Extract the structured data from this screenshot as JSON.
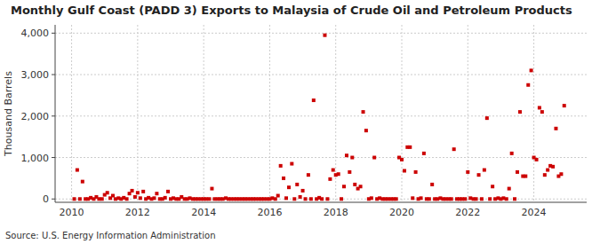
{
  "chart_data": {
    "type": "scatter",
    "title": "Monthly Gulf Coast (PADD 3) Exports to Malaysia of Crude Oil and Petroleum Products",
    "ylabel": "Thousand Barrels",
    "source": "Source: U.S. Energy Information Administration",
    "color": "#cc0000",
    "marker": "square",
    "grid": true,
    "xlim": [
      2009.5,
      2025.6
    ],
    "xticks": [
      2010,
      2012,
      2014,
      2016,
      2018,
      2020,
      2022,
      2024
    ],
    "ylim": [
      -80,
      4200
    ],
    "yticks": [
      0,
      {
        "value": 1000,
        "label": "1,000"
      },
      {
        "value": 2000,
        "label": "2,000"
      },
      {
        "value": 3000,
        "label": "3,000"
      },
      {
        "value": 4000,
        "label": "4,000"
      }
    ],
    "x": [
      2010.08,
      2010.17,
      2010.25,
      2010.33,
      2010.42,
      2010.5,
      2010.58,
      2010.67,
      2010.75,
      2010.83,
      2010.92,
      2011.0,
      2011.08,
      2011.17,
      2011.25,
      2011.33,
      2011.42,
      2011.5,
      2011.58,
      2011.67,
      2011.75,
      2011.83,
      2011.92,
      2012.0,
      2012.08,
      2012.17,
      2012.25,
      2012.33,
      2012.42,
      2012.5,
      2012.58,
      2012.67,
      2012.75,
      2012.83,
      2012.92,
      2013.0,
      2013.08,
      2013.17,
      2013.25,
      2013.33,
      2013.42,
      2013.5,
      2013.58,
      2013.67,
      2013.75,
      2013.83,
      2013.92,
      2014.0,
      2014.08,
      2014.17,
      2014.25,
      2014.33,
      2014.42,
      2014.5,
      2014.58,
      2014.67,
      2014.75,
      2014.83,
      2014.92,
      2015.0,
      2015.08,
      2015.17,
      2015.25,
      2015.33,
      2015.42,
      2015.5,
      2015.58,
      2015.67,
      2015.75,
      2015.83,
      2015.92,
      2016.0,
      2016.08,
      2016.17,
      2016.25,
      2016.33,
      2016.42,
      2016.5,
      2016.58,
      2016.67,
      2016.75,
      2016.83,
      2016.92,
      2017.0,
      2017.08,
      2017.17,
      2017.25,
      2017.33,
      2017.42,
      2017.5,
      2017.58,
      2017.67,
      2017.75,
      2017.83,
      2017.92,
      2018.0,
      2018.08,
      2018.17,
      2018.25,
      2018.33,
      2018.42,
      2018.5,
      2018.58,
      2018.67,
      2018.75,
      2018.83,
      2018.92,
      2019.0,
      2019.08,
      2019.17,
      2019.25,
      2019.33,
      2019.42,
      2019.5,
      2019.58,
      2019.67,
      2019.75,
      2019.83,
      2019.92,
      2020.0,
      2020.08,
      2020.17,
      2020.25,
      2020.33,
      2020.42,
      2020.5,
      2020.58,
      2020.67,
      2020.75,
      2020.83,
      2020.92,
      2021.0,
      2021.08,
      2021.17,
      2021.25,
      2021.33,
      2021.42,
      2021.5,
      2021.58,
      2021.67,
      2021.75,
      2021.83,
      2021.92,
      2022.0,
      2022.08,
      2022.17,
      2022.25,
      2022.33,
      2022.42,
      2022.5,
      2022.58,
      2022.67,
      2022.75,
      2022.83,
      2022.92,
      2023.0,
      2023.08,
      2023.17,
      2023.25,
      2023.33,
      2023.42,
      2023.5,
      2023.58,
      2023.67,
      2023.75,
      2023.83,
      2023.92,
      2024.0,
      2024.08,
      2024.17,
      2024.25,
      2024.33,
      2024.42,
      2024.5,
      2024.58,
      2024.67,
      2024.75,
      2024.83,
      2024.92
    ],
    "values": [
      0,
      700,
      0,
      420,
      0,
      0,
      30,
      0,
      50,
      0,
      0,
      100,
      150,
      20,
      80,
      0,
      20,
      0,
      30,
      0,
      130,
      200,
      50,
      150,
      20,
      180,
      0,
      30,
      0,
      20,
      130,
      0,
      0,
      30,
      180,
      0,
      20,
      0,
      0,
      50,
      0,
      0,
      20,
      0,
      0,
      0,
      0,
      0,
      0,
      0,
      250,
      0,
      0,
      0,
      0,
      20,
      0,
      0,
      0,
      0,
      0,
      0,
      0,
      0,
      0,
      0,
      0,
      0,
      0,
      0,
      0,
      0,
      20,
      0,
      80,
      800,
      500,
      20,
      280,
      850,
      0,
      350,
      50,
      200,
      0,
      580,
      0,
      2380,
      0,
      30,
      0,
      3950,
      0,
      480,
      700,
      580,
      600,
      0,
      300,
      1050,
      650,
      1000,
      350,
      250,
      300,
      2100,
      1650,
      0,
      20,
      1000,
      0,
      20,
      0,
      0,
      0,
      0,
      0,
      0,
      1000,
      950,
      680,
      1250,
      1250,
      20,
      650,
      0,
      20,
      1100,
      0,
      0,
      350,
      0,
      0,
      20,
      0,
      0,
      0,
      0,
      1200,
      0,
      0,
      0,
      0,
      650,
      20,
      0,
      0,
      580,
      0,
      700,
      1950,
      0,
      300,
      0,
      20,
      0,
      20,
      0,
      250,
      1100,
      0,
      650,
      2100,
      550,
      550,
      2750,
      3100,
      1000,
      950,
      2200,
      2100,
      580,
      700,
      800,
      780,
      1700,
      550,
      600,
      2250
    ]
  }
}
